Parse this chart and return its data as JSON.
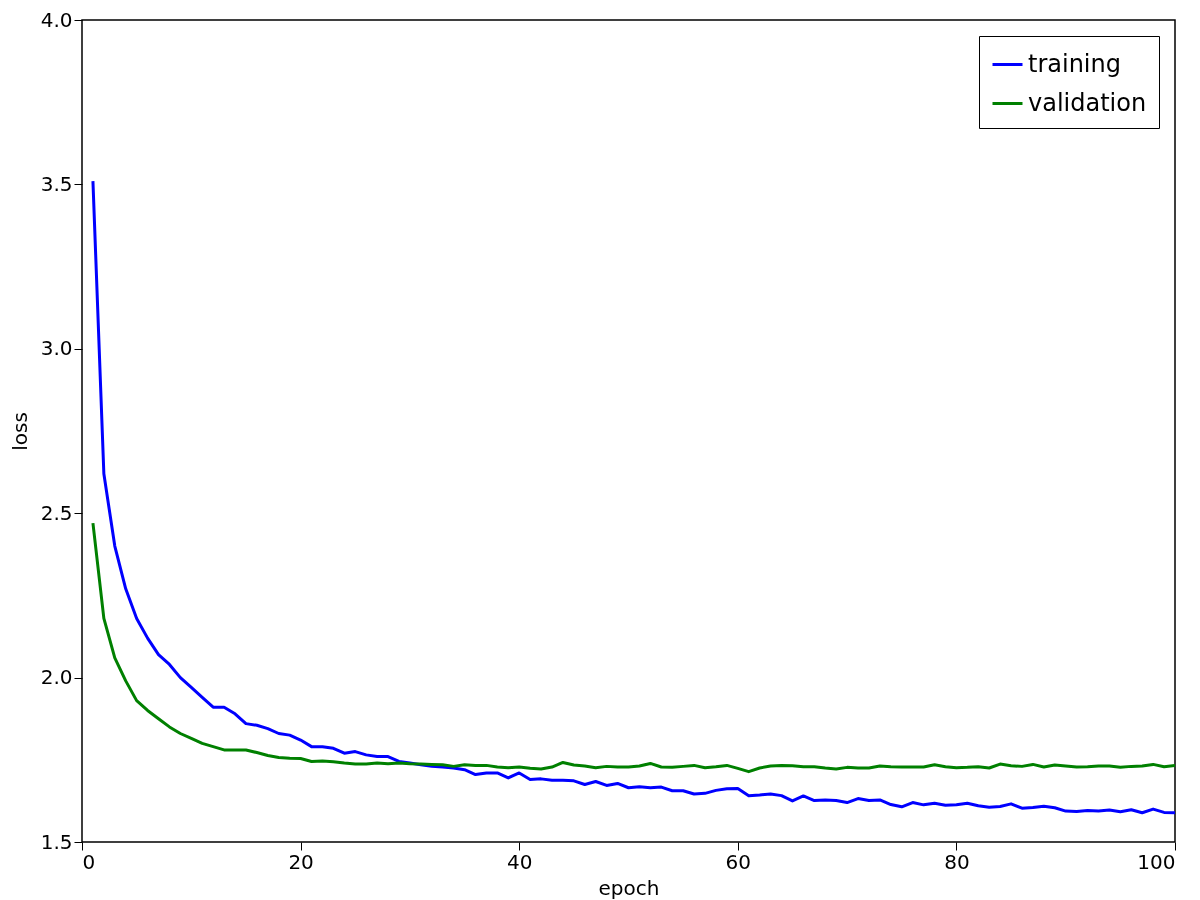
{
  "chart_data": {
    "type": "line",
    "xlabel": "epoch",
    "ylabel": "loss",
    "x": [
      1,
      2,
      3,
      4,
      5,
      6,
      7,
      8,
      9,
      10,
      11,
      12,
      13,
      14,
      15,
      16,
      17,
      18,
      19,
      20,
      21,
      22,
      23,
      24,
      25,
      26,
      27,
      28,
      29,
      30,
      31,
      32,
      33,
      34,
      35,
      36,
      37,
      38,
      39,
      40,
      41,
      42,
      43,
      44,
      45,
      46,
      47,
      48,
      49,
      50,
      51,
      52,
      53,
      54,
      55,
      56,
      57,
      58,
      59,
      60,
      61,
      62,
      63,
      64,
      65,
      66,
      67,
      68,
      69,
      70,
      71,
      72,
      73,
      74,
      75,
      76,
      77,
      78,
      79,
      80,
      81,
      82,
      83,
      84,
      85,
      86,
      87,
      88,
      89,
      90,
      91,
      92,
      93,
      94,
      95,
      96,
      97,
      98,
      99,
      100
    ],
    "series": [
      {
        "name": "training",
        "color": "#0000ff",
        "values": [
          3.51,
          2.62,
          2.4,
          2.27,
          2.18,
          2.12,
          2.07,
          2.04,
          2.0,
          1.97,
          1.94,
          1.91,
          1.91,
          1.89,
          1.86,
          1.855,
          1.845,
          1.83,
          1.825,
          1.81,
          1.79,
          1.79,
          1.785,
          1.77,
          1.775,
          1.765,
          1.76,
          1.76,
          1.745,
          1.74,
          1.735,
          1.73,
          1.728,
          1.725,
          1.72,
          1.705,
          1.71,
          1.71,
          1.695,
          1.71,
          1.69,
          1.692,
          1.688,
          1.688,
          1.686,
          1.675,
          1.684,
          1.672,
          1.678,
          1.665,
          1.668,
          1.665,
          1.667,
          1.656,
          1.656,
          1.646,
          1.648,
          1.657,
          1.662,
          1.663,
          1.641,
          1.643,
          1.646,
          1.641,
          1.625,
          1.64,
          1.626,
          1.628,
          1.626,
          1.62,
          1.632,
          1.626,
          1.628,
          1.614,
          1.607,
          1.62,
          1.613,
          1.618,
          1.612,
          1.613,
          1.618,
          1.61,
          1.606,
          1.608,
          1.616,
          1.603,
          1.605,
          1.609,
          1.604,
          1.594,
          1.593,
          1.596,
          1.594,
          1.597,
          1.592,
          1.598,
          1.589,
          1.6,
          1.59,
          1.589
        ]
      },
      {
        "name": "validation",
        "color": "#008000",
        "values": [
          2.47,
          2.18,
          2.06,
          1.99,
          1.93,
          1.9,
          1.875,
          1.85,
          1.83,
          1.815,
          1.8,
          1.79,
          1.78,
          1.78,
          1.78,
          1.772,
          1.763,
          1.757,
          1.755,
          1.754,
          1.745,
          1.746,
          1.744,
          1.74,
          1.737,
          1.737,
          1.74,
          1.738,
          1.74,
          1.738,
          1.737,
          1.736,
          1.735,
          1.73,
          1.735,
          1.733,
          1.733,
          1.728,
          1.726,
          1.728,
          1.724,
          1.722,
          1.728,
          1.742,
          1.734,
          1.731,
          1.726,
          1.73,
          1.728,
          1.728,
          1.731,
          1.739,
          1.728,
          1.727,
          1.73,
          1.733,
          1.726,
          1.729,
          1.733,
          1.724,
          1.714,
          1.725,
          1.731,
          1.733,
          1.732,
          1.729,
          1.729,
          1.725,
          1.722,
          1.727,
          1.725,
          1.725,
          1.731,
          1.729,
          1.728,
          1.728,
          1.728,
          1.735,
          1.729,
          1.726,
          1.727,
          1.729,
          1.725,
          1.737,
          1.732,
          1.73,
          1.736,
          1.728,
          1.734,
          1.731,
          1.728,
          1.729,
          1.731,
          1.731,
          1.727,
          1.73,
          1.731,
          1.736,
          1.729,
          1.733
        ]
      }
    ],
    "xlim": [
      0,
      100
    ],
    "xticks": [
      0,
      20,
      40,
      60,
      80,
      100
    ],
    "ylim": [
      1.5,
      4.0
    ],
    "yticks": [
      {
        "value": 1.5,
        "label": "1.5"
      },
      {
        "value": 2.0,
        "label": "2.0"
      },
      {
        "value": 2.5,
        "label": "2.5"
      },
      {
        "value": 3.0,
        "label": "3.0"
      },
      {
        "value": 3.5,
        "label": "3.5"
      },
      {
        "value": 4.0,
        "label": "4.0"
      }
    ],
    "legend": "top right",
    "grid": false
  }
}
